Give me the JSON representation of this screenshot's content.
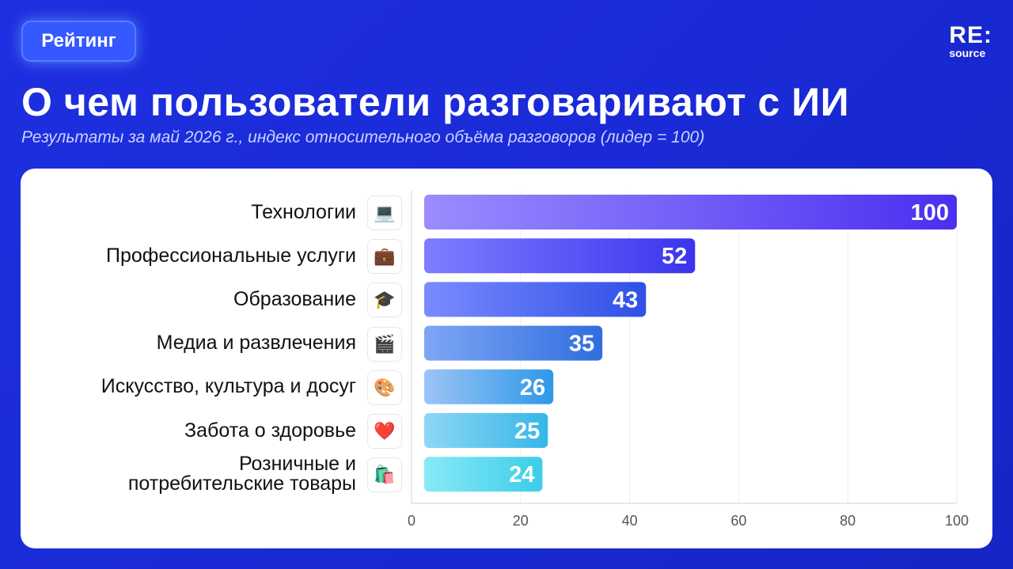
{
  "header": {
    "badge": "Рейтинг",
    "logo_main": "RE:",
    "logo_sub": "source",
    "title": "О чем пользователи разговаривают с ИИ",
    "subtitle": "Результаты за май 2026 г., индекс относительного объёма разговоров (лидер = 100)"
  },
  "chart_data": {
    "type": "bar",
    "orientation": "horizontal",
    "categories": [
      "Технологии",
      "Профессиональные услуги",
      "Образование",
      "Медиа и развлечения",
      "Искусство, культура и досуг",
      "Забота о здоровье",
      "Розничные и потребительские товары"
    ],
    "category_lines": [
      [
        "Технологии"
      ],
      [
        "Профессиональные услуги"
      ],
      [
        "Образование"
      ],
      [
        "Медиа и развлечения"
      ],
      [
        "Искусство, культура и досуг"
      ],
      [
        "Забота о здоровье"
      ],
      [
        "Розничные и",
        "потребительские товары"
      ]
    ],
    "icons": [
      "laptop-icon",
      "briefcase-icon",
      "graduation-cap-icon",
      "clapperboard-icon",
      "palette-icon",
      "heart-icon",
      "shopping-bags-icon"
    ],
    "icon_glyphs": [
      "💻",
      "💼",
      "🎓",
      "🎬",
      "🎨",
      "❤️",
      "🛍️"
    ],
    "values": [
      100,
      52,
      43,
      35,
      26,
      25,
      24
    ],
    "xlim": [
      0,
      100
    ],
    "xticks": [
      0,
      20,
      40,
      60,
      80,
      100
    ],
    "grid": true,
    "colors": {
      "bar_start": [
        "#9b8cff",
        "#7f7dff",
        "#7a8bff",
        "#7ea6f5",
        "#9cc4f6",
        "#8fd6f5",
        "#88eaf6"
      ],
      "bar_end": [
        "#4a2ff0",
        "#3a34ee",
        "#2f4fe6",
        "#2f6ede",
        "#2e98e8",
        "#35b7e8",
        "#3ccde8"
      ]
    }
  }
}
